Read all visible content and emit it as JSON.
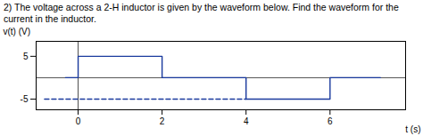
{
  "chart_data": {
    "type": "line",
    "title": "2) The voltage across a 2-H inductor is given by the waveform below. Find the waveform for the current in the inductor.",
    "x_label": "t (s)",
    "y_label": "v(t) (V)",
    "series": [
      {
        "color": "#1a3a9e",
        "line_style": "solid",
        "x": [
          -0.3,
          0,
          0,
          2,
          2,
          4,
          4,
          6,
          6,
          7.2
        ],
        "values": [
          0,
          0,
          5,
          5,
          0,
          0,
          -5,
          -5,
          0,
          0
        ]
      },
      {
        "color": "#1a3a9e",
        "line_style": "dashed",
        "x": [
          -0.8,
          4
        ],
        "values": [
          -5,
          -5
        ]
      }
    ],
    "xlim": [
      -1.0,
      7.8
    ],
    "ylim": [
      -7.5,
      8.5
    ],
    "xticks": [
      0,
      2,
      4,
      6
    ],
    "yticks": [
      5,
      -5
    ],
    "grid": false
  }
}
